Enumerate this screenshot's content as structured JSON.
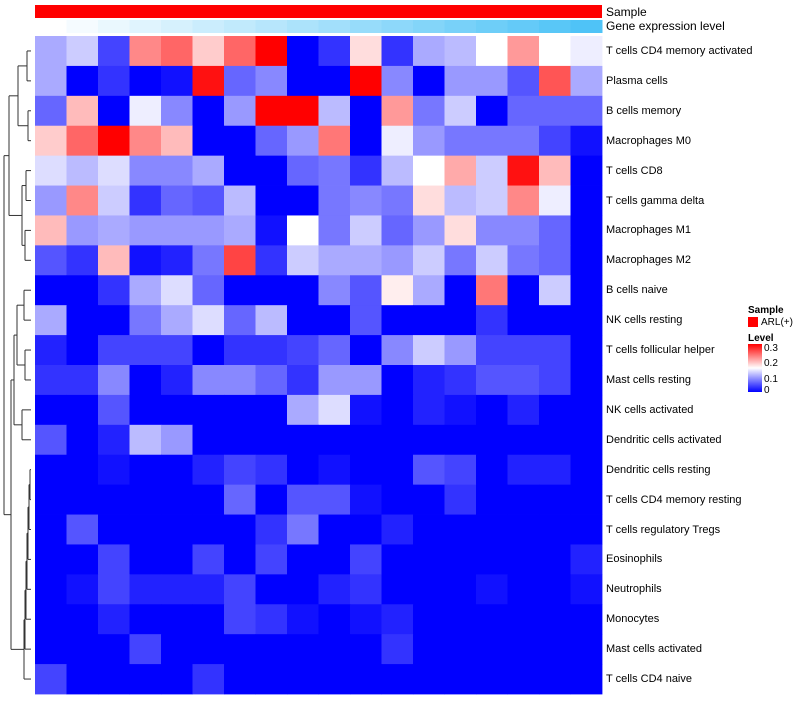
{
  "chart_data": {
    "type": "heatmap",
    "annotations": [
      {
        "name": "Sample",
        "value_label": "ARL(+)",
        "color": "#ff0000"
      },
      {
        "name": "Gene expression level",
        "gradient": [
          "#ffffff",
          "#4fc3f7"
        ]
      }
    ],
    "rows": [
      "T cells CD4 memory activated",
      "Plasma cells",
      "B cells memory",
      "Macrophages M0",
      "T cells CD8",
      "T cells gamma delta",
      "Macrophages M1",
      "Macrophages M2",
      "B cells naive",
      "NK cells resting",
      "T cells follicular helper",
      "Mast cells resting",
      "NK cells activated",
      "Dendritic cells activated",
      "Dendritic cells resting",
      "T cells CD4 memory resting",
      "T cells regulatory  Tregs",
      "Eosinophils",
      "Neutrophils",
      "Monocytes",
      "Mast cells activated",
      "T cells CD4 naive"
    ],
    "n_columns": 18,
    "values": [
      [
        0.1,
        0.12,
        0.04,
        0.22,
        0.24,
        0.18,
        0.24,
        0.3,
        0.0,
        0.03,
        0.17,
        0.03,
        0.1,
        0.11,
        0.15,
        0.21,
        0.15,
        0.14
      ],
      [
        0.1,
        0.0,
        0.03,
        0.0,
        0.01,
        0.29,
        0.06,
        0.08,
        0.0,
        0.0,
        0.3,
        0.08,
        0.0,
        0.09,
        0.09,
        0.05,
        0.25,
        0.1
      ],
      [
        0.06,
        0.19,
        0.0,
        0.14,
        0.08,
        0.0,
        0.09,
        0.3,
        0.3,
        0.11,
        0.0,
        0.21,
        0.07,
        0.12,
        0.0,
        0.06,
        0.06,
        0.06
      ],
      [
        0.18,
        0.24,
        0.3,
        0.22,
        0.19,
        0.0,
        0.0,
        0.06,
        0.09,
        0.23,
        0.0,
        0.14,
        0.09,
        0.07,
        0.07,
        0.07,
        0.04,
        0.01
      ],
      [
        0.13,
        0.11,
        0.13,
        0.08,
        0.08,
        0.1,
        0.0,
        0.0,
        0.06,
        0.07,
        0.03,
        0.11,
        0.15,
        0.2,
        0.12,
        0.29,
        0.19,
        0.0
      ],
      [
        0.09,
        0.22,
        0.12,
        0.03,
        0.06,
        0.05,
        0.11,
        0.0,
        0.0,
        0.07,
        0.08,
        0.07,
        0.17,
        0.11,
        0.12,
        0.22,
        0.14,
        0.0
      ],
      [
        0.19,
        0.09,
        0.1,
        0.09,
        0.09,
        0.09,
        0.1,
        0.01,
        0.15,
        0.07,
        0.12,
        0.06,
        0.09,
        0.17,
        0.08,
        0.08,
        0.06,
        0.0
      ],
      [
        0.05,
        0.03,
        0.19,
        0.01,
        0.02,
        0.07,
        0.26,
        0.03,
        0.12,
        0.1,
        0.1,
        0.09,
        0.12,
        0.07,
        0.12,
        0.07,
        0.06,
        0.0
      ],
      [
        0.0,
        0.0,
        0.03,
        0.1,
        0.13,
        0.06,
        0.0,
        0.0,
        0.0,
        0.08,
        0.05,
        0.16,
        0.1,
        0.0,
        0.23,
        0.0,
        0.12,
        0.0
      ],
      [
        0.1,
        0.0,
        0.0,
        0.07,
        0.1,
        0.13,
        0.06,
        0.11,
        0.0,
        0.0,
        0.05,
        0.0,
        0.0,
        0.0,
        0.03,
        0.0,
        0.0,
        0.0
      ],
      [
        0.02,
        0.0,
        0.04,
        0.04,
        0.04,
        0.0,
        0.03,
        0.03,
        0.04,
        0.06,
        0.0,
        0.08,
        0.12,
        0.09,
        0.04,
        0.04,
        0.04,
        0.0
      ],
      [
        0.03,
        0.03,
        0.08,
        0.0,
        0.02,
        0.08,
        0.08,
        0.06,
        0.03,
        0.09,
        0.09,
        0.0,
        0.02,
        0.03,
        0.05,
        0.05,
        0.04,
        0.0
      ],
      [
        0.0,
        0.0,
        0.05,
        0.0,
        0.0,
        0.0,
        0.0,
        0.0,
        0.1,
        0.13,
        0.01,
        0.0,
        0.02,
        0.01,
        0.0,
        0.02,
        0.0,
        0.0
      ],
      [
        0.05,
        0.0,
        0.02,
        0.11,
        0.09,
        0.0,
        0.0,
        0.0,
        0.0,
        0.0,
        0.0,
        0.0,
        0.0,
        0.0,
        0.0,
        0.0,
        0.0,
        0.0
      ],
      [
        0.0,
        0.0,
        0.01,
        0.0,
        0.0,
        0.02,
        0.04,
        0.03,
        0.0,
        0.01,
        0.0,
        0.0,
        0.05,
        0.04,
        0.0,
        0.02,
        0.02,
        0.0
      ],
      [
        0.0,
        0.0,
        0.0,
        0.0,
        0.0,
        0.0,
        0.06,
        0.0,
        0.05,
        0.05,
        0.01,
        0.0,
        0.0,
        0.03,
        0.0,
        0.0,
        0.0,
        0.0
      ],
      [
        0.0,
        0.05,
        0.0,
        0.0,
        0.0,
        0.0,
        0.0,
        0.03,
        0.07,
        0.0,
        0.0,
        0.02,
        0.0,
        0.0,
        0.0,
        0.0,
        0.0,
        0.0
      ],
      [
        0.0,
        0.0,
        0.04,
        0.0,
        0.0,
        0.04,
        0.0,
        0.04,
        0.0,
        0.0,
        0.04,
        0.0,
        0.0,
        0.0,
        0.0,
        0.0,
        0.0,
        0.02
      ],
      [
        0.0,
        0.01,
        0.04,
        0.02,
        0.02,
        0.02,
        0.04,
        0.0,
        0.0,
        0.02,
        0.03,
        0.0,
        0.0,
        0.0,
        0.01,
        0.0,
        0.0,
        0.01
      ],
      [
        0.0,
        0.0,
        0.02,
        0.0,
        0.0,
        0.0,
        0.04,
        0.03,
        0.01,
        0.0,
        0.01,
        0.02,
        0.0,
        0.0,
        0.0,
        0.0,
        0.0,
        0.0
      ],
      [
        0.0,
        0.0,
        0.0,
        0.04,
        0.0,
        0.0,
        0.0,
        0.0,
        0.0,
        0.0,
        0.0,
        0.03,
        0.0,
        0.0,
        0.0,
        0.0,
        0.0,
        0.0
      ],
      [
        0.04,
        0.0,
        0.0,
        0.0,
        0.0,
        0.03,
        0.0,
        0.0,
        0.0,
        0.0,
        0.0,
        0.0,
        0.0,
        0.0,
        0.0,
        0.0,
        0.0,
        0.0
      ]
    ],
    "color_scale": {
      "min": 0,
      "mid": 0.15,
      "max": 0.3,
      "colors": [
        "#0000ff",
        "#ffffff",
        "#ff0000"
      ]
    }
  },
  "legend": {
    "sample_title": "Sample",
    "sample_item": "ARL(+)",
    "sample_color": "#ff0000",
    "level_title": "Level",
    "level_ticks": [
      "0.3",
      "0.2",
      "0.1",
      "0"
    ]
  }
}
